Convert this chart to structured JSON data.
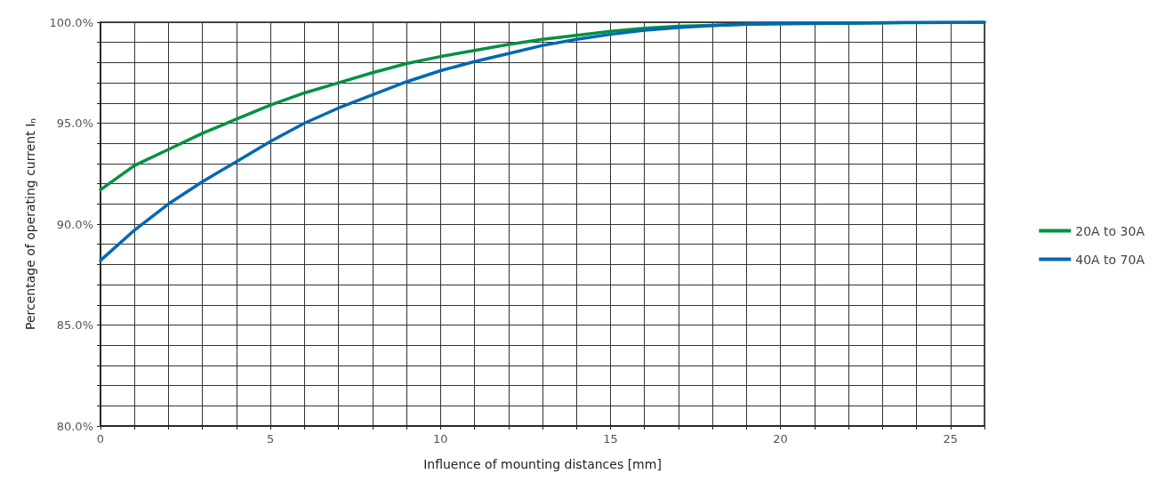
{
  "chart_data": {
    "type": "line",
    "xlabel": "Influence of mounting distances [mm]",
    "ylabel": "Percentage of operating current I$_{n}$",
    "xlim": [
      0,
      26
    ],
    "xticks": [
      0,
      {
        "value": 1,
        "label": null
      },
      {
        "value": 2,
        "label": null
      },
      {
        "value": 3,
        "label": null
      },
      {
        "value": 4,
        "label": null
      },
      5,
      {
        "value": 6,
        "label": null
      },
      {
        "value": 7,
        "label": null
      },
      {
        "value": 8,
        "label": null
      },
      {
        "value": 9,
        "label": null
      },
      10,
      {
        "value": 11,
        "label": null
      },
      {
        "value": 12,
        "label": null
      },
      {
        "value": 13,
        "label": null
      },
      {
        "value": 14,
        "label": null
      },
      15,
      {
        "value": 16,
        "label": null
      },
      {
        "value": 17,
        "label": null
      },
      {
        "value": 18,
        "label": null
      },
      {
        "value": 19,
        "label": null
      },
      20,
      {
        "value": 21,
        "label": null
      },
      {
        "value": 22,
        "label": null
      },
      {
        "value": 23,
        "label": null
      },
      {
        "value": 24,
        "label": null
      },
      25,
      {
        "value": 26,
        "label": null
      }
    ],
    "ylim": [
      80,
      100
    ],
    "yticks": [
      {
        "value": 80,
        "label": "80.0%"
      },
      {
        "value": 81,
        "label": null
      },
      {
        "value": 82,
        "label": null
      },
      {
        "value": 83,
        "label": null
      },
      {
        "value": 84,
        "label": null
      },
      {
        "value": 85,
        "label": "85.0%"
      },
      {
        "value": 86,
        "label": null
      },
      {
        "value": 87,
        "label": null
      },
      {
        "value": 88,
        "label": null
      },
      {
        "value": 89,
        "label": null
      },
      {
        "value": 90,
        "label": "90.0%"
      },
      {
        "value": 91,
        "label": null
      },
      {
        "value": 92,
        "label": null
      },
      {
        "value": 93,
        "label": null
      },
      {
        "value": 94,
        "label": null
      },
      {
        "value": 95,
        "label": "95.0%"
      },
      {
        "value": 96,
        "label": null
      },
      {
        "value": 97,
        "label": null
      },
      {
        "value": 98,
        "label": null
      },
      {
        "value": 99,
        "label": null
      },
      {
        "value": 100,
        "label": "100.0%"
      }
    ],
    "x": [
      0,
      1,
      2,
      3,
      4,
      5,
      6,
      7,
      8,
      9,
      10,
      11,
      12,
      13,
      14,
      15,
      16,
      17,
      18,
      19,
      20,
      22,
      24,
      26
    ],
    "series": [
      {
        "name": "20A to 30A",
        "color": "#00923f",
        "values": [
          91.7,
          92.9,
          93.7,
          94.5,
          95.2,
          95.9,
          96.5,
          97.0,
          97.5,
          97.95,
          98.3,
          98.6,
          98.9,
          99.15,
          99.35,
          99.55,
          99.7,
          99.8,
          99.85,
          99.9,
          99.92,
          99.95,
          99.98,
          100
        ]
      },
      {
        "name": "40A to 70A",
        "color": "#0068b4",
        "values": [
          88.2,
          89.7,
          91.0,
          92.1,
          93.1,
          94.1,
          95.0,
          95.75,
          96.4,
          97.05,
          97.6,
          98.05,
          98.45,
          98.85,
          99.15,
          99.4,
          99.6,
          99.74,
          99.83,
          99.9,
          99.93,
          99.97,
          99.99,
          100
        ]
      }
    ],
    "grid": true,
    "legend": "right",
    "marker": "none",
    "line_style": "solid"
  }
}
